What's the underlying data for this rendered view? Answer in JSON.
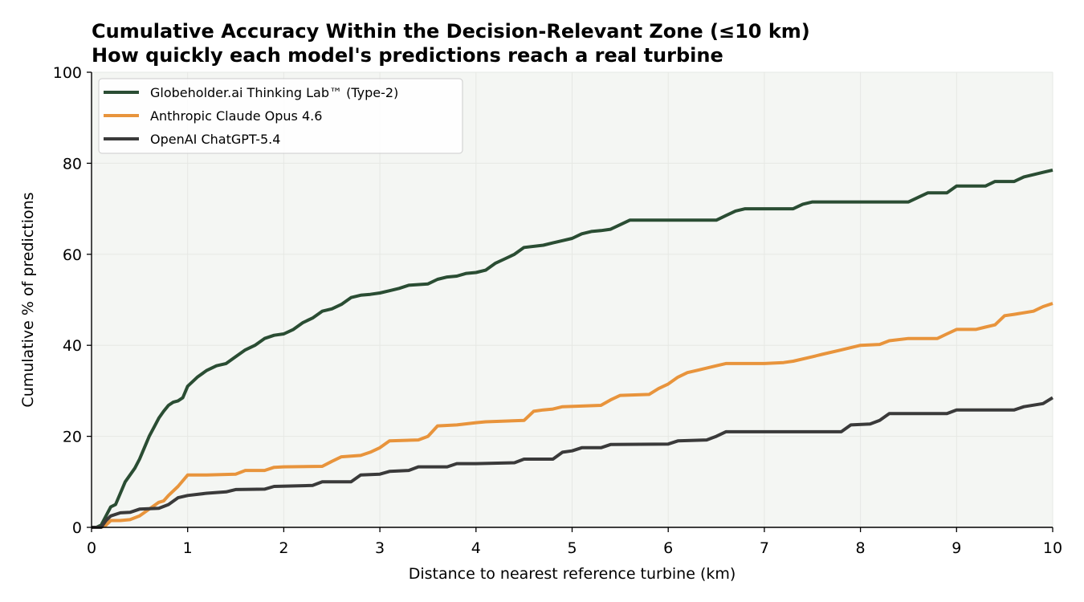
{
  "chart_data": {
    "type": "line",
    "title": "Cumulative Accuracy Within the Decision-Relevant Zone (≤10 km)",
    "subtitle": "How quickly each model's predictions reach a real turbine",
    "xlabel": "Distance to nearest reference turbine (km)",
    "ylabel": "Cumulative % of predictions",
    "xlim": [
      0,
      10
    ],
    "ylim": [
      0,
      100
    ],
    "xticks": [
      "0",
      "1",
      "2",
      "3",
      "4",
      "5",
      "6",
      "7",
      "8",
      "9",
      "10"
    ],
    "yticks": [
      "0",
      "20",
      "40",
      "60",
      "80",
      "100"
    ],
    "grid": true,
    "legend_position": "top-left",
    "background_color": "#f4f6f3",
    "series": [
      {
        "name": "Globeholder.ai Thinking Lab™ (Type-2)",
        "color": "#2a4d33",
        "points": [
          [
            0,
            0
          ],
          [
            0.05,
            0
          ],
          [
            0.1,
            0.5
          ],
          [
            0.15,
            2.5
          ],
          [
            0.2,
            4.5
          ],
          [
            0.25,
            5
          ],
          [
            0.3,
            7.5
          ],
          [
            0.35,
            10
          ],
          [
            0.4,
            11.5
          ],
          [
            0.45,
            13
          ],
          [
            0.5,
            15
          ],
          [
            0.55,
            17.5
          ],
          [
            0.6,
            20
          ],
          [
            0.65,
            22
          ],
          [
            0.7,
            24
          ],
          [
            0.75,
            25.5
          ],
          [
            0.8,
            26.8
          ],
          [
            0.85,
            27.5
          ],
          [
            0.9,
            27.8
          ],
          [
            0.95,
            28.5
          ],
          [
            1.0,
            31
          ],
          [
            1.1,
            33
          ],
          [
            1.2,
            34.5
          ],
          [
            1.3,
            35.5
          ],
          [
            1.4,
            36
          ],
          [
            1.5,
            37.5
          ],
          [
            1.6,
            39
          ],
          [
            1.7,
            40
          ],
          [
            1.8,
            41.5
          ],
          [
            1.9,
            42.2
          ],
          [
            2.0,
            42.5
          ],
          [
            2.1,
            43.5
          ],
          [
            2.2,
            45
          ],
          [
            2.3,
            46
          ],
          [
            2.4,
            47.5
          ],
          [
            2.5,
            48
          ],
          [
            2.6,
            49
          ],
          [
            2.7,
            50.5
          ],
          [
            2.8,
            51
          ],
          [
            2.9,
            51.2
          ],
          [
            3.0,
            51.5
          ],
          [
            3.1,
            52
          ],
          [
            3.2,
            52.5
          ],
          [
            3.3,
            53.2
          ],
          [
            3.5,
            53.5
          ],
          [
            3.6,
            54.5
          ],
          [
            3.7,
            55
          ],
          [
            3.8,
            55.2
          ],
          [
            3.9,
            55.8
          ],
          [
            4.0,
            56
          ],
          [
            4.1,
            56.5
          ],
          [
            4.2,
            58
          ],
          [
            4.3,
            59
          ],
          [
            4.4,
            60
          ],
          [
            4.5,
            61.5
          ],
          [
            4.7,
            62
          ],
          [
            4.8,
            62.5
          ],
          [
            4.9,
            63
          ],
          [
            5.0,
            63.5
          ],
          [
            5.1,
            64.5
          ],
          [
            5.2,
            65
          ],
          [
            5.3,
            65.2
          ],
          [
            5.4,
            65.5
          ],
          [
            5.5,
            66.5
          ],
          [
            5.6,
            67.5
          ],
          [
            6.0,
            67.5
          ],
          [
            6.5,
            67.5
          ],
          [
            6.6,
            68.5
          ],
          [
            6.7,
            69.5
          ],
          [
            6.8,
            70
          ],
          [
            7.0,
            70
          ],
          [
            7.3,
            70
          ],
          [
            7.4,
            71
          ],
          [
            7.5,
            71.5
          ],
          [
            7.8,
            71.5
          ],
          [
            8.0,
            71.5
          ],
          [
            8.5,
            71.5
          ],
          [
            8.6,
            72.5
          ],
          [
            8.7,
            73.5
          ],
          [
            8.9,
            73.5
          ],
          [
            9.0,
            75
          ],
          [
            9.3,
            75
          ],
          [
            9.4,
            76
          ],
          [
            9.6,
            76
          ],
          [
            9.7,
            77
          ],
          [
            9.8,
            77.5
          ],
          [
            9.9,
            78
          ],
          [
            10.0,
            78.5
          ]
        ]
      },
      {
        "name": "Anthropic Claude Opus 4.6",
        "color": "#e8943c",
        "points": [
          [
            0,
            0
          ],
          [
            0.1,
            0
          ],
          [
            0.15,
            0.5
          ],
          [
            0.2,
            1.5
          ],
          [
            0.3,
            1.5
          ],
          [
            0.4,
            1.7
          ],
          [
            0.5,
            2.5
          ],
          [
            0.6,
            4
          ],
          [
            0.7,
            5.5
          ],
          [
            0.75,
            5.8
          ],
          [
            0.8,
            7
          ],
          [
            0.9,
            9
          ],
          [
            1.0,
            11.5
          ],
          [
            1.2,
            11.5
          ],
          [
            1.5,
            11.7
          ],
          [
            1.6,
            12.5
          ],
          [
            1.8,
            12.5
          ],
          [
            1.9,
            13.2
          ],
          [
            2.0,
            13.3
          ],
          [
            2.4,
            13.4
          ],
          [
            2.5,
            14.5
          ],
          [
            2.6,
            15.5
          ],
          [
            2.8,
            15.8
          ],
          [
            2.9,
            16.5
          ],
          [
            3.0,
            17.5
          ],
          [
            3.1,
            19
          ],
          [
            3.4,
            19.2
          ],
          [
            3.5,
            20
          ],
          [
            3.6,
            22.3
          ],
          [
            3.8,
            22.5
          ],
          [
            4.0,
            23
          ],
          [
            4.1,
            23.2
          ],
          [
            4.5,
            23.5
          ],
          [
            4.6,
            25.5
          ],
          [
            4.7,
            25.8
          ],
          [
            4.8,
            26
          ],
          [
            4.9,
            26.5
          ],
          [
            5.3,
            26.8
          ],
          [
            5.4,
            28
          ],
          [
            5.5,
            29
          ],
          [
            5.8,
            29.2
          ],
          [
            5.9,
            30.5
          ],
          [
            6.0,
            31.5
          ],
          [
            6.1,
            33
          ],
          [
            6.2,
            34
          ],
          [
            6.3,
            34.5
          ],
          [
            6.4,
            35
          ],
          [
            6.5,
            35.5
          ],
          [
            6.6,
            36
          ],
          [
            7.0,
            36
          ],
          [
            7.2,
            36.2
          ],
          [
            7.3,
            36.5
          ],
          [
            7.5,
            37.5
          ],
          [
            7.6,
            38
          ],
          [
            7.8,
            39
          ],
          [
            8.0,
            40
          ],
          [
            8.2,
            40.2
          ],
          [
            8.3,
            41
          ],
          [
            8.5,
            41.5
          ],
          [
            8.8,
            41.5
          ],
          [
            8.9,
            42.5
          ],
          [
            9.0,
            43.5
          ],
          [
            9.2,
            43.5
          ],
          [
            9.3,
            44
          ],
          [
            9.4,
            44.5
          ],
          [
            9.5,
            46.5
          ],
          [
            9.6,
            46.8
          ],
          [
            9.8,
            47.5
          ],
          [
            9.9,
            48.5
          ],
          [
            10.0,
            49.2
          ]
        ]
      },
      {
        "name": "OpenAI ChatGPT-5.4",
        "color": "#3a3a3a",
        "points": [
          [
            0,
            0
          ],
          [
            0.1,
            0
          ],
          [
            0.15,
            1.5
          ],
          [
            0.2,
            2.5
          ],
          [
            0.3,
            3.2
          ],
          [
            0.4,
            3.3
          ],
          [
            0.5,
            4
          ],
          [
            0.7,
            4.2
          ],
          [
            0.8,
            5
          ],
          [
            0.9,
            6.5
          ],
          [
            1.0,
            7
          ],
          [
            1.2,
            7.5
          ],
          [
            1.4,
            7.8
          ],
          [
            1.5,
            8.3
          ],
          [
            1.8,
            8.4
          ],
          [
            1.9,
            9
          ],
          [
            2.3,
            9.2
          ],
          [
            2.4,
            10
          ],
          [
            2.7,
            10
          ],
          [
            2.8,
            11.5
          ],
          [
            3.0,
            11.7
          ],
          [
            3.1,
            12.3
          ],
          [
            3.3,
            12.5
          ],
          [
            3.4,
            13.3
          ],
          [
            3.7,
            13.3
          ],
          [
            3.8,
            14
          ],
          [
            4.0,
            14
          ],
          [
            4.4,
            14.2
          ],
          [
            4.5,
            15
          ],
          [
            4.8,
            15
          ],
          [
            4.9,
            16.5
          ],
          [
            5.0,
            16.8
          ],
          [
            5.1,
            17.5
          ],
          [
            5.3,
            17.5
          ],
          [
            5.4,
            18.2
          ],
          [
            6.0,
            18.3
          ],
          [
            6.1,
            19
          ],
          [
            6.4,
            19.2
          ],
          [
            6.5,
            20
          ],
          [
            6.6,
            21
          ],
          [
            7.0,
            21
          ],
          [
            7.8,
            21
          ],
          [
            7.9,
            22.5
          ],
          [
            8.1,
            22.7
          ],
          [
            8.2,
            23.5
          ],
          [
            8.3,
            25
          ],
          [
            8.5,
            25
          ],
          [
            8.9,
            25
          ],
          [
            9.0,
            25.8
          ],
          [
            9.6,
            25.8
          ],
          [
            9.7,
            26.5
          ],
          [
            9.9,
            27.2
          ],
          [
            10.0,
            28.5
          ]
        ]
      }
    ]
  }
}
